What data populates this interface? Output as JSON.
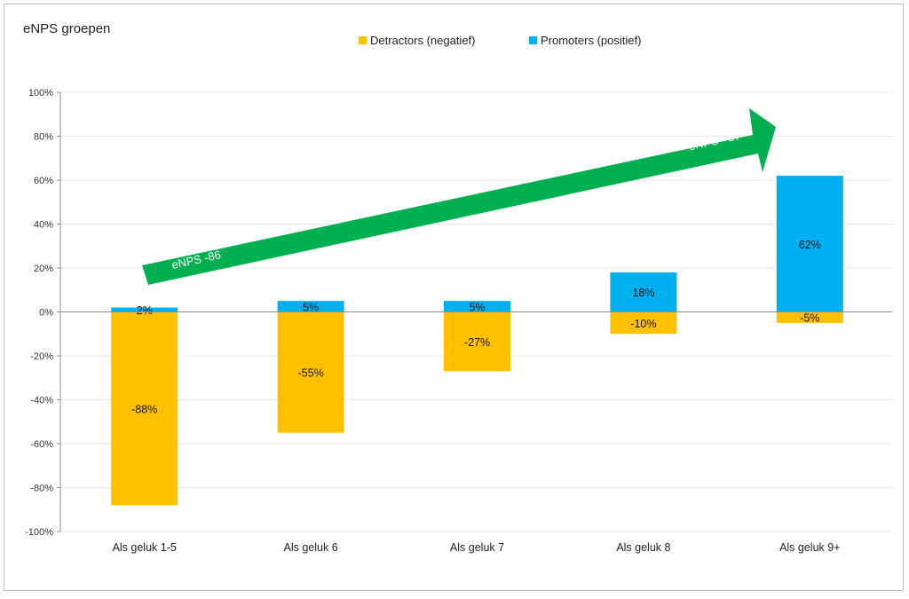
{
  "chart_data": {
    "type": "bar",
    "title": "eNPS groepen",
    "categories": [
      "Als geluk 1-5",
      "Als geluk 6",
      "Als geluk 7",
      "Als geluk 8",
      "Als geluk 9+"
    ],
    "series": [
      {
        "name": "Detractors (negatief)",
        "color": "#ffc000",
        "values": [
          -88,
          -55,
          -27,
          -10,
          -5
        ],
        "labels": [
          "-88%",
          "-55%",
          "-27%",
          "-10%",
          "-5%"
        ]
      },
      {
        "name": "Promoters (positief)",
        "color": "#00b0f0",
        "values": [
          2,
          5,
          5,
          18,
          62
        ],
        "labels": [
          "2%",
          "5%",
          "5%",
          "18%",
          "62%"
        ]
      }
    ],
    "ylim": [
      -100,
      100
    ],
    "yticks": [
      100,
      80,
      60,
      40,
      20,
      0,
      -20,
      -40,
      -60,
      -80,
      -100
    ],
    "ytick_labels": [
      "100%",
      "80%",
      "60%",
      "40%",
      "20%",
      "0%",
      "-20%",
      "-40%",
      "-60%",
      "-80%",
      "-100%"
    ],
    "annotations": {
      "arrow_color": "#00b050",
      "start_label": "eNPS -86",
      "end_label": "eNPS +57"
    }
  }
}
